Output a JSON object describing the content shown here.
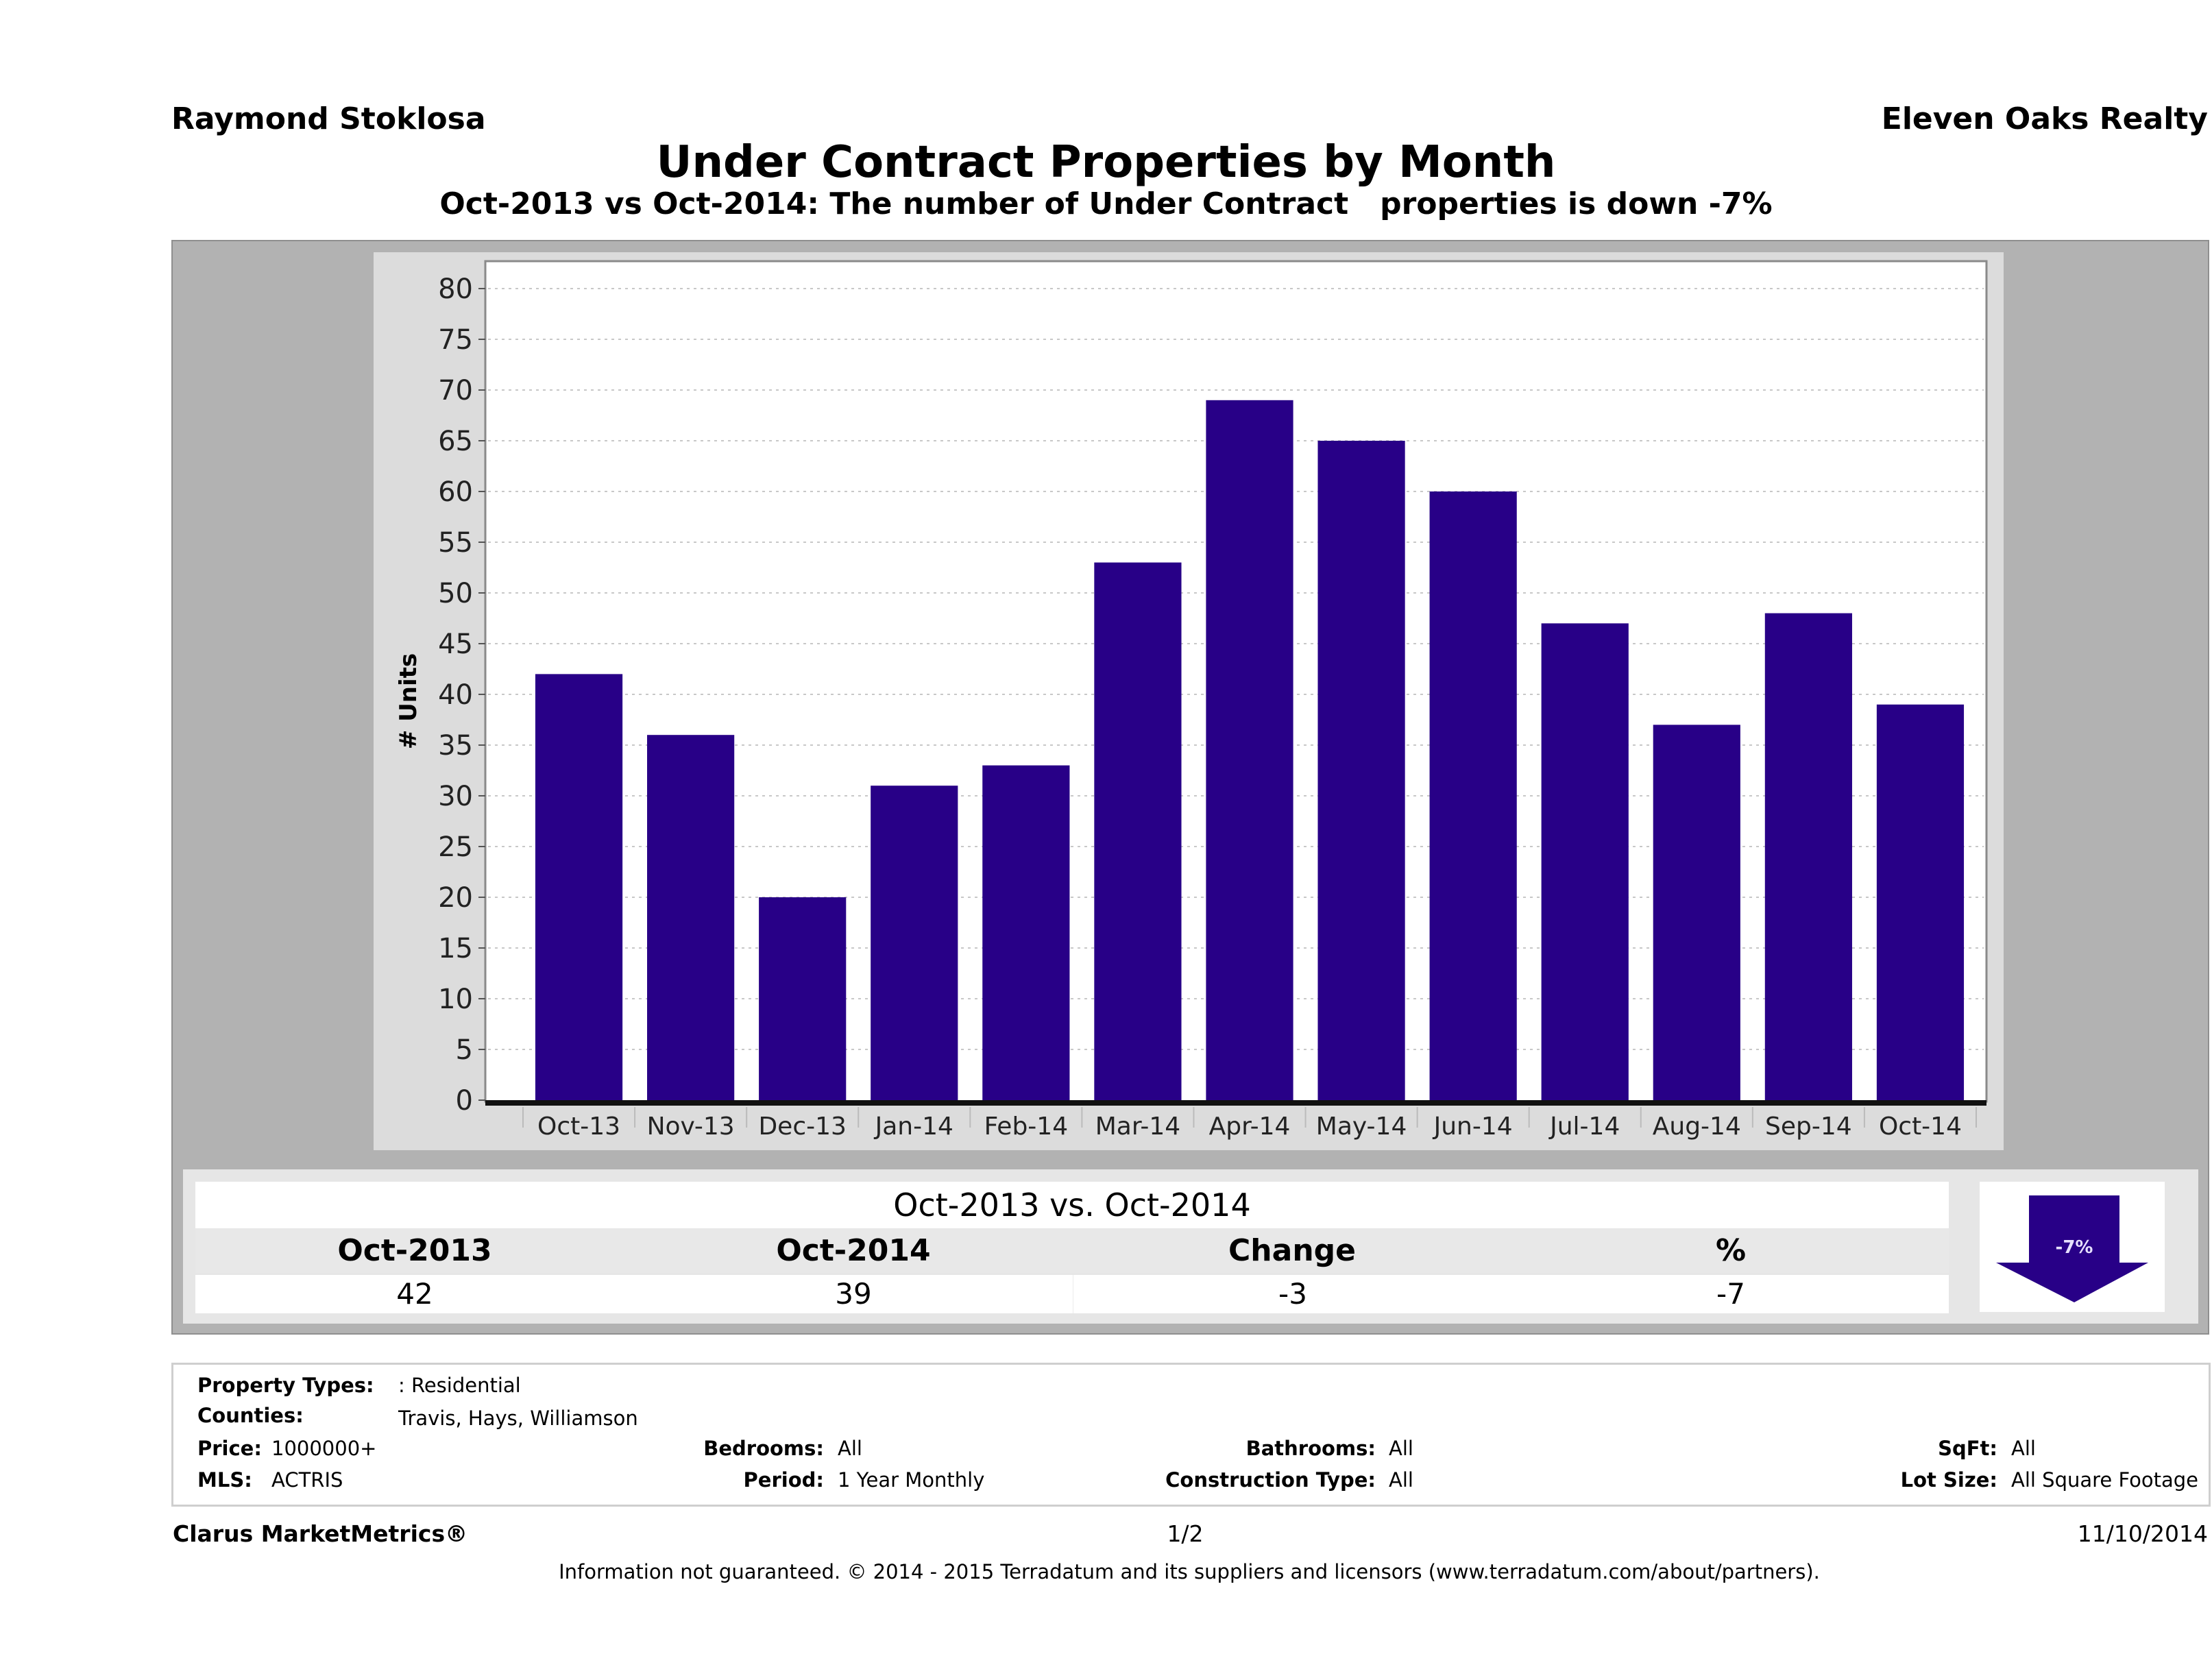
{
  "header": {
    "agent_name": "Raymond Stoklosa",
    "company_name": "Eleven Oaks Realty",
    "title": "Under Contract Properties by Month",
    "subtitle": "Oct-2013 vs Oct-2014: The number of Under Contract   properties is down -7%"
  },
  "chart_data": {
    "type": "bar",
    "title": "Under Contract Properties by Month",
    "xlabel": "",
    "ylabel": "# Units",
    "categories": [
      "Oct-13",
      "Nov-13",
      "Dec-13",
      "Jan-14",
      "Feb-14",
      "Mar-14",
      "Apr-14",
      "May-14",
      "Jun-14",
      "Jul-14",
      "Aug-14",
      "Sep-14",
      "Oct-14"
    ],
    "values": [
      42,
      36,
      20,
      31,
      33,
      53,
      69,
      65,
      60,
      47,
      37,
      48,
      39
    ],
    "ylim": [
      0,
      80
    ],
    "yticks": [
      0,
      5,
      10,
      15,
      20,
      25,
      30,
      35,
      40,
      45,
      50,
      55,
      60,
      65,
      70,
      75,
      80
    ],
    "grid": true,
    "legend": "none",
    "bar_color": "#280087"
  },
  "comparison": {
    "title": "Oct-2013 vs. Oct-2014",
    "headers": [
      "Oct-2013",
      "Oct-2014",
      "Change",
      "%"
    ],
    "values": [
      "42",
      "39",
      "-3",
      "-7"
    ],
    "badge": {
      "label": "-7%",
      "icon": "down-arrow-icon",
      "color": "#280087"
    }
  },
  "filters": {
    "property_types": {
      "label": "Property Types:",
      "value": ": Residential"
    },
    "counties": {
      "label": "Counties:",
      "value": "Travis, Hays, Williamson"
    },
    "price": {
      "label": "Price:",
      "value": "1000000+"
    },
    "mls": {
      "label": "MLS:",
      "value": "ACTRIS"
    },
    "bedrooms": {
      "label": "Bedrooms:",
      "value": "All"
    },
    "period": {
      "label": "Period:",
      "value": "1 Year Monthly"
    },
    "bathrooms": {
      "label": "Bathrooms:",
      "value": "All"
    },
    "construction_type": {
      "label": "Construction Type:",
      "value": "All"
    },
    "sqft": {
      "label": "SqFt:",
      "value": "All"
    },
    "lot_size": {
      "label": "Lot Size:",
      "value": "All Square Footage"
    }
  },
  "footer": {
    "brand": "Clarus MarketMetrics®",
    "page": "1/2",
    "date": "11/10/2014",
    "disclaimer": "Information not guaranteed. © 2014 - 2015 Terradatum and its suppliers and licensors (www.terradatum.com/about/partners)."
  }
}
